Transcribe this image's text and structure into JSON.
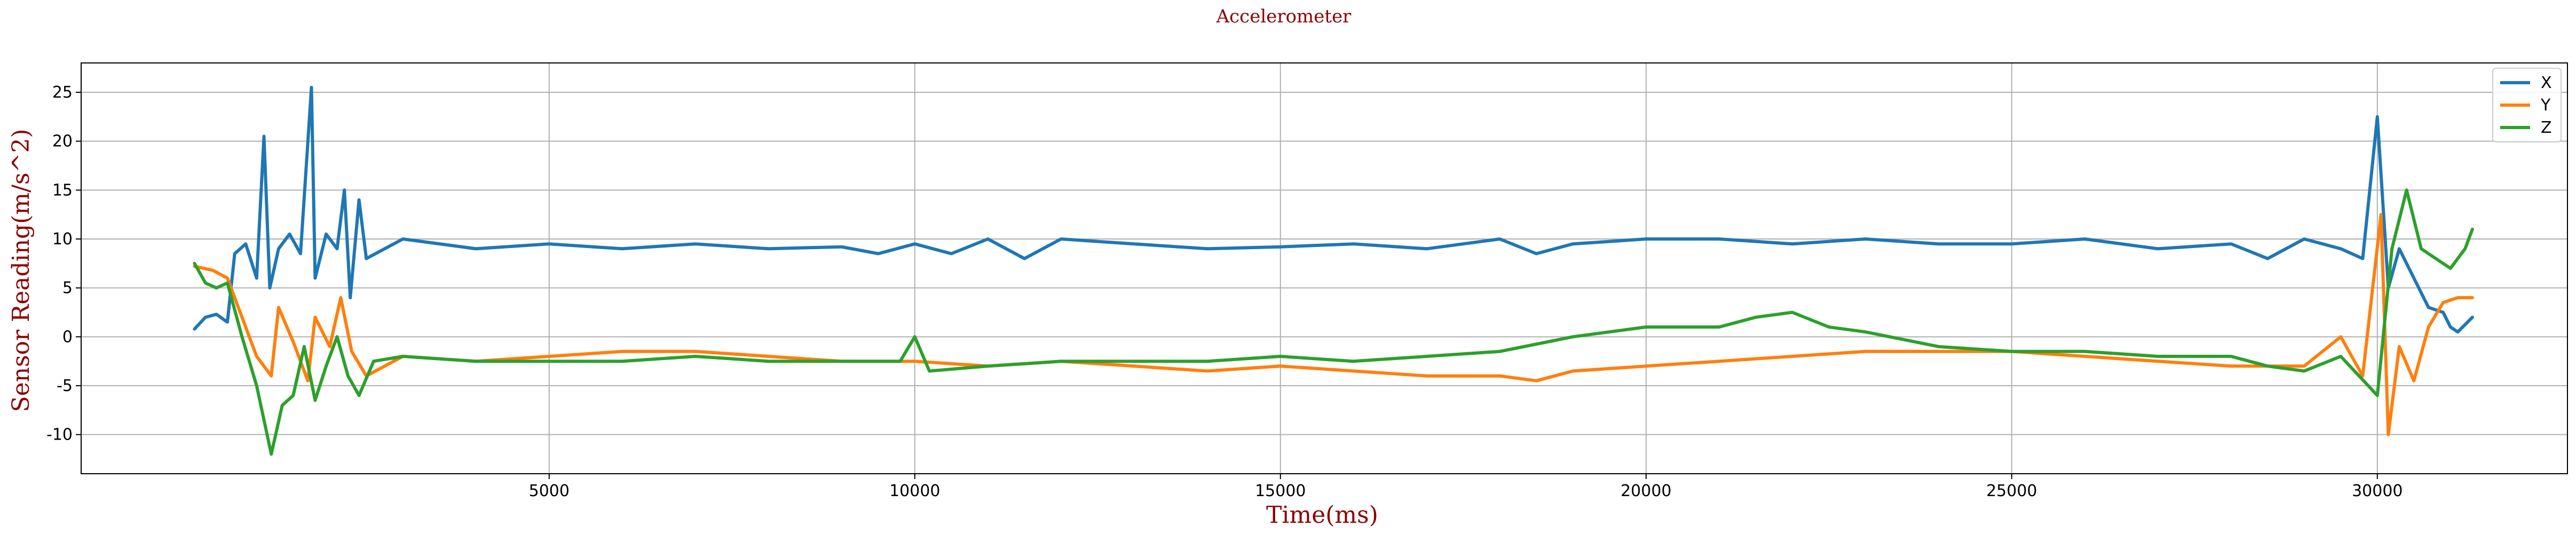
{
  "chart_data": {
    "type": "line",
    "title": "Accelerometer",
    "xlabel": "Time(ms)",
    "ylabel": "Sensor Reading(m/s^2)",
    "xlim": [
      -1400,
      32600
    ],
    "ylim": [
      -14,
      28
    ],
    "xticks": [
      5000,
      10000,
      15000,
      20000,
      25000,
      30000
    ],
    "yticks": [
      -10,
      -5,
      0,
      5,
      10,
      15,
      20,
      25
    ],
    "grid": true,
    "legend": "top-right",
    "colors": {
      "title": "#8b0000",
      "axis_labels": "#8b0000",
      "X": "#1f77b4",
      "Y": "#ff7f0e",
      "Z": "#2ca02c"
    },
    "series": [
      {
        "name": "X",
        "color": "#1f77b4",
        "points": [
          [
            150,
            0.8
          ],
          [
            300,
            2.0
          ],
          [
            450,
            2.3
          ],
          [
            600,
            1.5
          ],
          [
            700,
            8.5
          ],
          [
            850,
            9.5
          ],
          [
            1000,
            6.0
          ],
          [
            1100,
            20.5
          ],
          [
            1180,
            5.0
          ],
          [
            1300,
            9.0
          ],
          [
            1450,
            10.5
          ],
          [
            1600,
            8.5
          ],
          [
            1750,
            25.5
          ],
          [
            1800,
            6.0
          ],
          [
            1950,
            10.5
          ],
          [
            2100,
            9.0
          ],
          [
            2200,
            15.0
          ],
          [
            2280,
            4.0
          ],
          [
            2400,
            14.0
          ],
          [
            2500,
            8.0
          ],
          [
            3000,
            10.0
          ],
          [
            4000,
            9.0
          ],
          [
            5000,
            9.5
          ],
          [
            6000,
            9.0
          ],
          [
            7000,
            9.5
          ],
          [
            8000,
            9.0
          ],
          [
            9000,
            9.2
          ],
          [
            9500,
            8.5
          ],
          [
            10000,
            9.5
          ],
          [
            10500,
            8.5
          ],
          [
            11000,
            10.0
          ],
          [
            11500,
            8.0
          ],
          [
            12000,
            10.0
          ],
          [
            13000,
            9.5
          ],
          [
            14000,
            9.0
          ],
          [
            15000,
            9.2
          ],
          [
            16000,
            9.5
          ],
          [
            17000,
            9.0
          ],
          [
            18000,
            10.0
          ],
          [
            18500,
            8.5
          ],
          [
            19000,
            9.5
          ],
          [
            20000,
            10.0
          ],
          [
            21000,
            10.0
          ],
          [
            22000,
            9.5
          ],
          [
            23000,
            10.0
          ],
          [
            24000,
            9.5
          ],
          [
            25000,
            9.5
          ],
          [
            26000,
            10.0
          ],
          [
            27000,
            9.0
          ],
          [
            28000,
            9.5
          ],
          [
            28500,
            8.0
          ],
          [
            29000,
            10.0
          ],
          [
            29500,
            9.0
          ],
          [
            29800,
            8.0
          ],
          [
            30000,
            22.5
          ],
          [
            30150,
            5.0
          ],
          [
            30300,
            9.0
          ],
          [
            30500,
            6.0
          ],
          [
            30700,
            3.0
          ],
          [
            30900,
            2.5
          ],
          [
            31000,
            1.0
          ],
          [
            31100,
            0.5
          ],
          [
            31300,
            2.0
          ]
        ]
      },
      {
        "name": "Y",
        "color": "#ff7f0e",
        "points": [
          [
            150,
            7.2
          ],
          [
            400,
            6.8
          ],
          [
            600,
            6.0
          ],
          [
            800,
            2.0
          ],
          [
            1000,
            -2.0
          ],
          [
            1200,
            -4.0
          ],
          [
            1300,
            3.0
          ],
          [
            1500,
            -0.5
          ],
          [
            1700,
            -4.5
          ],
          [
            1800,
            2.0
          ],
          [
            2000,
            -1.0
          ],
          [
            2150,
            4.0
          ],
          [
            2300,
            -1.5
          ],
          [
            2500,
            -4.0
          ],
          [
            3000,
            -2.0
          ],
          [
            4000,
            -2.5
          ],
          [
            5000,
            -2.0
          ],
          [
            6000,
            -1.5
          ],
          [
            7000,
            -1.5
          ],
          [
            8000,
            -2.0
          ],
          [
            9000,
            -2.5
          ],
          [
            10000,
            -2.5
          ],
          [
            11000,
            -3.0
          ],
          [
            12000,
            -2.5
          ],
          [
            13000,
            -3.0
          ],
          [
            14000,
            -3.5
          ],
          [
            15000,
            -3.0
          ],
          [
            16000,
            -3.5
          ],
          [
            17000,
            -4.0
          ],
          [
            18000,
            -4.0
          ],
          [
            18500,
            -4.5
          ],
          [
            19000,
            -3.5
          ],
          [
            20000,
            -3.0
          ],
          [
            21000,
            -2.5
          ],
          [
            22000,
            -2.0
          ],
          [
            23000,
            -1.5
          ],
          [
            24000,
            -1.5
          ],
          [
            25000,
            -1.5
          ],
          [
            26000,
            -2.0
          ],
          [
            27000,
            -2.5
          ],
          [
            28000,
            -3.0
          ],
          [
            29000,
            -3.0
          ],
          [
            29500,
            0.0
          ],
          [
            29800,
            -4.0
          ],
          [
            30050,
            12.5
          ],
          [
            30150,
            -10.0
          ],
          [
            30300,
            -1.0
          ],
          [
            30500,
            -4.5
          ],
          [
            30700,
            1.0
          ],
          [
            30900,
            3.5
          ],
          [
            31100,
            4.0
          ],
          [
            31300,
            4.0
          ]
        ]
      },
      {
        "name": "Z",
        "color": "#2ca02c",
        "points": [
          [
            150,
            7.5
          ],
          [
            300,
            5.5
          ],
          [
            450,
            5.0
          ],
          [
            600,
            5.5
          ],
          [
            800,
            0.0
          ],
          [
            1000,
            -5.0
          ],
          [
            1200,
            -12.0
          ],
          [
            1350,
            -7.0
          ],
          [
            1500,
            -6.0
          ],
          [
            1650,
            -1.0
          ],
          [
            1800,
            -6.5
          ],
          [
            1950,
            -3.0
          ],
          [
            2100,
            0.0
          ],
          [
            2250,
            -4.0
          ],
          [
            2400,
            -6.0
          ],
          [
            2600,
            -2.5
          ],
          [
            3000,
            -2.0
          ],
          [
            4000,
            -2.5
          ],
          [
            5000,
            -2.5
          ],
          [
            6000,
            -2.5
          ],
          [
            7000,
            -2.0
          ],
          [
            8000,
            -2.5
          ],
          [
            9000,
            -2.5
          ],
          [
            9800,
            -2.5
          ],
          [
            10000,
            0.0
          ],
          [
            10200,
            -3.5
          ],
          [
            11000,
            -3.0
          ],
          [
            12000,
            -2.5
          ],
          [
            13000,
            -2.5
          ],
          [
            14000,
            -2.5
          ],
          [
            15000,
            -2.0
          ],
          [
            16000,
            -2.5
          ],
          [
            17000,
            -2.0
          ],
          [
            18000,
            -1.5
          ],
          [
            19000,
            0.0
          ],
          [
            20000,
            1.0
          ],
          [
            21000,
            1.0
          ],
          [
            21500,
            2.0
          ],
          [
            22000,
            2.5
          ],
          [
            22500,
            1.0
          ],
          [
            23000,
            0.5
          ],
          [
            24000,
            -1.0
          ],
          [
            25000,
            -1.5
          ],
          [
            26000,
            -1.5
          ],
          [
            27000,
            -2.0
          ],
          [
            28000,
            -2.0
          ],
          [
            28500,
            -3.0
          ],
          [
            29000,
            -3.5
          ],
          [
            29500,
            -2.0
          ],
          [
            30000,
            -6.0
          ],
          [
            30200,
            9.0
          ],
          [
            30400,
            15.0
          ],
          [
            30600,
            9.0
          ],
          [
            30800,
            8.0
          ],
          [
            31000,
            7.0
          ],
          [
            31200,
            9.0
          ],
          [
            31300,
            11.0
          ]
        ]
      }
    ]
  }
}
